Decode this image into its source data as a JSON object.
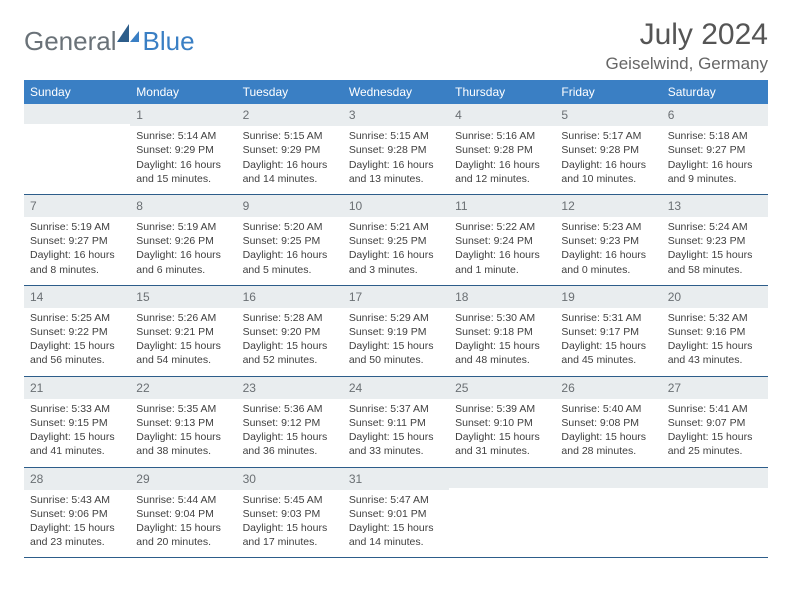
{
  "brand": {
    "general": "General",
    "blue": "Blue"
  },
  "title": "July 2024",
  "location": "Geiselwind, Germany",
  "weekday_labels": [
    "Sunday",
    "Monday",
    "Tuesday",
    "Wednesday",
    "Thursday",
    "Friday",
    "Saturday"
  ],
  "colors": {
    "header_bg": "#3a7fc4",
    "header_text": "#ffffff",
    "daynum_bg": "#e9edef",
    "rule": "#2d5d8a"
  },
  "weeks": [
    [
      {
        "blank": true
      },
      {
        "n": "1",
        "sr": "5:14 AM",
        "ss": "9:29 PM",
        "dl": "16 hours and 15 minutes."
      },
      {
        "n": "2",
        "sr": "5:15 AM",
        "ss": "9:29 PM",
        "dl": "16 hours and 14 minutes."
      },
      {
        "n": "3",
        "sr": "5:15 AM",
        "ss": "9:28 PM",
        "dl": "16 hours and 13 minutes."
      },
      {
        "n": "4",
        "sr": "5:16 AM",
        "ss": "9:28 PM",
        "dl": "16 hours and 12 minutes."
      },
      {
        "n": "5",
        "sr": "5:17 AM",
        "ss": "9:28 PM",
        "dl": "16 hours and 10 minutes."
      },
      {
        "n": "6",
        "sr": "5:18 AM",
        "ss": "9:27 PM",
        "dl": "16 hours and 9 minutes."
      }
    ],
    [
      {
        "n": "7",
        "sr": "5:19 AM",
        "ss": "9:27 PM",
        "dl": "16 hours and 8 minutes."
      },
      {
        "n": "8",
        "sr": "5:19 AM",
        "ss": "9:26 PM",
        "dl": "16 hours and 6 minutes."
      },
      {
        "n": "9",
        "sr": "5:20 AM",
        "ss": "9:25 PM",
        "dl": "16 hours and 5 minutes."
      },
      {
        "n": "10",
        "sr": "5:21 AM",
        "ss": "9:25 PM",
        "dl": "16 hours and 3 minutes."
      },
      {
        "n": "11",
        "sr": "5:22 AM",
        "ss": "9:24 PM",
        "dl": "16 hours and 1 minute."
      },
      {
        "n": "12",
        "sr": "5:23 AM",
        "ss": "9:23 PM",
        "dl": "16 hours and 0 minutes."
      },
      {
        "n": "13",
        "sr": "5:24 AM",
        "ss": "9:23 PM",
        "dl": "15 hours and 58 minutes."
      }
    ],
    [
      {
        "n": "14",
        "sr": "5:25 AM",
        "ss": "9:22 PM",
        "dl": "15 hours and 56 minutes."
      },
      {
        "n": "15",
        "sr": "5:26 AM",
        "ss": "9:21 PM",
        "dl": "15 hours and 54 minutes."
      },
      {
        "n": "16",
        "sr": "5:28 AM",
        "ss": "9:20 PM",
        "dl": "15 hours and 52 minutes."
      },
      {
        "n": "17",
        "sr": "5:29 AM",
        "ss": "9:19 PM",
        "dl": "15 hours and 50 minutes."
      },
      {
        "n": "18",
        "sr": "5:30 AM",
        "ss": "9:18 PM",
        "dl": "15 hours and 48 minutes."
      },
      {
        "n": "19",
        "sr": "5:31 AM",
        "ss": "9:17 PM",
        "dl": "15 hours and 45 minutes."
      },
      {
        "n": "20",
        "sr": "5:32 AM",
        "ss": "9:16 PM",
        "dl": "15 hours and 43 minutes."
      }
    ],
    [
      {
        "n": "21",
        "sr": "5:33 AM",
        "ss": "9:15 PM",
        "dl": "15 hours and 41 minutes."
      },
      {
        "n": "22",
        "sr": "5:35 AM",
        "ss": "9:13 PM",
        "dl": "15 hours and 38 minutes."
      },
      {
        "n": "23",
        "sr": "5:36 AM",
        "ss": "9:12 PM",
        "dl": "15 hours and 36 minutes."
      },
      {
        "n": "24",
        "sr": "5:37 AM",
        "ss": "9:11 PM",
        "dl": "15 hours and 33 minutes."
      },
      {
        "n": "25",
        "sr": "5:39 AM",
        "ss": "9:10 PM",
        "dl": "15 hours and 31 minutes."
      },
      {
        "n": "26",
        "sr": "5:40 AM",
        "ss": "9:08 PM",
        "dl": "15 hours and 28 minutes."
      },
      {
        "n": "27",
        "sr": "5:41 AM",
        "ss": "9:07 PM",
        "dl": "15 hours and 25 minutes."
      }
    ],
    [
      {
        "n": "28",
        "sr": "5:43 AM",
        "ss": "9:06 PM",
        "dl": "15 hours and 23 minutes."
      },
      {
        "n": "29",
        "sr": "5:44 AM",
        "ss": "9:04 PM",
        "dl": "15 hours and 20 minutes."
      },
      {
        "n": "30",
        "sr": "5:45 AM",
        "ss": "9:03 PM",
        "dl": "15 hours and 17 minutes."
      },
      {
        "n": "31",
        "sr": "5:47 AM",
        "ss": "9:01 PM",
        "dl": "15 hours and 14 minutes."
      },
      {
        "blank": true
      },
      {
        "blank": true
      },
      {
        "blank": true
      }
    ]
  ],
  "labels": {
    "sunrise": "Sunrise:",
    "sunset": "Sunset:",
    "daylight": "Daylight:"
  }
}
